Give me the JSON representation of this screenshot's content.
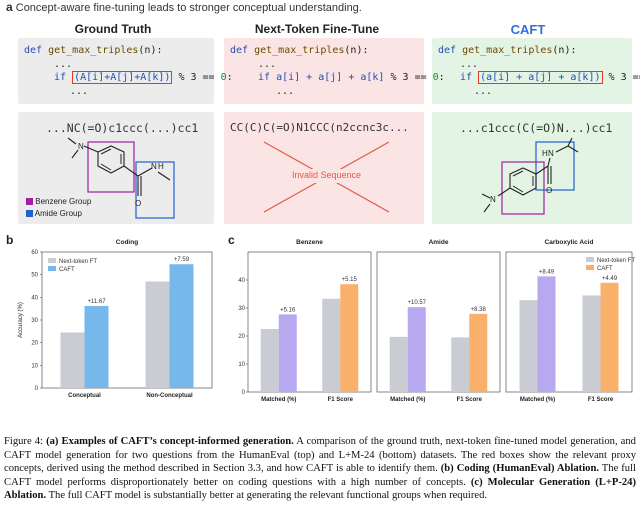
{
  "panel_a": {
    "letter": "a",
    "title": "Concept-aware fine-tuning leads to stronger conceptual understanding.",
    "columns": [
      "Ground Truth",
      "Next-Token Fine-Tune",
      "CAFT"
    ],
    "code": {
      "def_kw": "def",
      "fn_name": "get_max_triples",
      "params": "(n):",
      "dots": "...",
      "if_kw": "if",
      "gt_expr": "(A[i]+A[j]+A[k])",
      "ntf_expr": "a[i] + a[j] + a[k]",
      "caft_expr": "(a[i] + a[j] + a[k])",
      "mod": "% 3 ==",
      "zero": "0",
      "colon": ":"
    },
    "smiles": {
      "gt": "...NC(=O)c1ccc(...)cc1",
      "ntf": "CC(C)C(=O)N1CCC(n2ccnc3c...",
      "caft": "...c1ccc(C(=O)N...)cc1"
    },
    "invalid_label": "Invalid Sequence",
    "legend": [
      {
        "label": "Benzene Group",
        "color": "#a020a0"
      },
      {
        "label": "Amide Group",
        "color": "#1f5fd0"
      }
    ],
    "atoms": {
      "N": "N",
      "H": "H",
      "O": "O"
    },
    "colors": {
      "gt_bg": "#ececec",
      "ntf_bg": "#fbe4e4",
      "caft_bg": "#e4f4e4",
      "red_box": "#e03a2a",
      "caft_title": "#2f6fe0"
    }
  },
  "panel_b": {
    "letter": "b",
    "chart_data": {
      "type": "bar",
      "title": "Coding",
      "categories": [
        "Conceptual",
        "Non-Conceptual"
      ],
      "series": [
        {
          "name": "Next-token FT",
          "values": [
            24.5,
            47.0
          ],
          "color": "#c9ccd3"
        },
        {
          "name": "CAFT",
          "values": [
            36.2,
            54.6
          ],
          "color": "#76b8ec"
        }
      ],
      "annotations": [
        "+11.67",
        "+7.59"
      ],
      "ylabel": "Accuracy (%)",
      "ylim": [
        0,
        60
      ],
      "yticks": [
        "0",
        "10",
        "20",
        "30",
        "40",
        "50",
        "60"
      ],
      "legend_position": "top-left"
    }
  },
  "panel_c": {
    "letter": "c",
    "chart_data": [
      {
        "type": "bar",
        "title": "Benzene",
        "categories": [
          "Matched (%)",
          "F1 Score"
        ],
        "series": [
          {
            "name": "Next-token FT",
            "values": [
              22.5,
              33.3
            ]
          },
          {
            "name": "CAFT",
            "values": [
              27.7,
              38.5
            ]
          }
        ],
        "annotations": [
          "+5.16",
          "+5.15"
        ],
        "ylim": [
          0,
          50
        ],
        "yticks": [
          "0",
          "10",
          "20",
          "30",
          "40"
        ],
        "caft_color": "#b7a8f0"
      },
      {
        "type": "bar",
        "title": "Amide",
        "categories": [
          "Matched (%)",
          "F1 Score"
        ],
        "series": [
          {
            "name": "Next-token FT",
            "values": [
              19.7,
              19.5
            ]
          },
          {
            "name": "CAFT",
            "values": [
              30.3,
              27.9
            ]
          }
        ],
        "annotations": [
          "+10.57",
          "+8.38"
        ],
        "ylim": [
          0,
          50
        ],
        "caft_color": "#b7a8f0",
        "caft_color2": "#f8b06a"
      },
      {
        "type": "bar",
        "title": "Carboxylic Acid",
        "categories": [
          "Matched (%)",
          "F1 Score"
        ],
        "series": [
          {
            "name": "Next-token FT",
            "values": [
              32.8,
              34.5
            ]
          },
          {
            "name": "CAFT",
            "values": [
              41.3,
              39.0
            ]
          }
        ],
        "annotations": [
          "+8.49",
          "+4.49"
        ],
        "ylim": [
          0,
          50
        ],
        "caft_color": "#b7a8f0",
        "caft_color2": "#f8b06a",
        "legend": [
          "Next-token FT",
          "CAFT"
        ],
        "legend_position": "top-right"
      }
    ]
  },
  "caption": {
    "fig": "Figure 4:",
    "a_bold": "(a) Examples of CAFT’s concept-informed generation.",
    "a_text": "A comparison of the ground truth, next-token fine-tuned model generation, and CAFT model generation for two questions from the HumanEval (top) and L+M-24 (bottom) datasets. The red boxes show the relevant proxy concepts, derived using the method described in Section 3.3, and how CAFT is able to identify them.",
    "b_bold": "(b) Coding (HumanEval) Ablation.",
    "b_text": "The full CAFT model performs disproportionately better on coding questions with a high number of concepts.",
    "c_bold": "(c) Molecular Generation (L+P-24) Ablation.",
    "c_text": "The full CAFT model is substantially better at generating the relevant functional groups when required."
  }
}
